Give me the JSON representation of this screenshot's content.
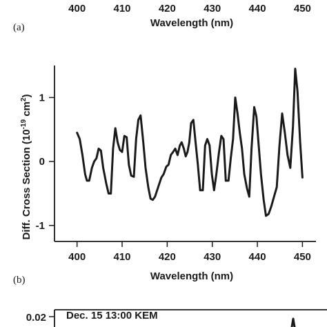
{
  "top_panel": {
    "x_tick_labels": [
      "400",
      "410",
      "420",
      "430",
      "440",
      "450"
    ],
    "xlabel": "Wavelength (nm)",
    "panel_label": "(a)"
  },
  "chart_data": {
    "type": "line",
    "panel_label": "(b)",
    "title": "",
    "xlabel": "Wavelength (nm)",
    "ylabel_parts": [
      "Diff. Cross Section (10",
      "-19",
      " cm",
      "2",
      ")"
    ],
    "xlim": [
      395,
      453
    ],
    "ylim": [
      -1.25,
      1.5
    ],
    "x_ticks": [
      400,
      410,
      420,
      430,
      440,
      450
    ],
    "y_ticks": [
      -1,
      0,
      1
    ],
    "x_tick_labels": [
      "400",
      "410",
      "420",
      "430",
      "440",
      "450"
    ],
    "y_tick_labels": [
      "-1",
      "0",
      "1"
    ],
    "grid": false,
    "series": [
      {
        "x": [
          400.0,
          400.6,
          401.2,
          401.8,
          402.2,
          402.7,
          403.3,
          403.8,
          404.3,
          404.8,
          405.3,
          405.8,
          406.5,
          407.0,
          407.5,
          408.0,
          408.5,
          409.0,
          409.5,
          410.0,
          410.5,
          411.0,
          411.5,
          412.0,
          412.6,
          413.1,
          413.6,
          414.1,
          414.7,
          415.2,
          415.8,
          416.3,
          416.8,
          417.3,
          418.0,
          418.7,
          419.2,
          419.8,
          420.3,
          420.8,
          421.3,
          421.8,
          422.3,
          422.8,
          423.2,
          423.7,
          424.1,
          424.5,
          424.9,
          425.3,
          425.8,
          426.3,
          426.8,
          427.3,
          427.9,
          428.4,
          428.9,
          429.4,
          429.9,
          430.4,
          430.9,
          431.5,
          432.0,
          432.5,
          433.0,
          433.6,
          434.1,
          434.6,
          435.1,
          435.6,
          436.1,
          436.6,
          437.1,
          437.7,
          438.2,
          438.7,
          439.3,
          439.8,
          440.3,
          440.8,
          441.4,
          441.9,
          442.5,
          443.1,
          443.7,
          444.3,
          444.9,
          445.5,
          446.1,
          446.7,
          447.3,
          447.9,
          448.4,
          448.9,
          449.5,
          450.0
        ],
        "values": [
          0.45,
          0.35,
          0.1,
          -0.2,
          -0.3,
          -0.3,
          -0.1,
          0.0,
          0.05,
          0.2,
          0.17,
          -0.1,
          -0.35,
          -0.5,
          -0.5,
          0.2,
          0.52,
          0.3,
          0.18,
          0.15,
          0.4,
          0.38,
          -0.05,
          -0.22,
          -0.24,
          0.35,
          0.65,
          0.72,
          0.3,
          -0.1,
          -0.4,
          -0.58,
          -0.6,
          -0.55,
          -0.4,
          -0.25,
          -0.2,
          -0.08,
          -0.05,
          0.1,
          0.15,
          0.2,
          0.1,
          0.25,
          0.3,
          0.2,
          0.08,
          0.15,
          0.3,
          0.6,
          0.65,
          0.3,
          -0.05,
          -0.45,
          -0.45,
          0.25,
          0.35,
          0.25,
          -0.2,
          -0.45,
          -0.2,
          0.15,
          0.4,
          0.35,
          -0.3,
          -0.3,
          0.05,
          0.35,
          1.0,
          0.75,
          0.45,
          0.2,
          -0.2,
          -0.42,
          -0.55,
          0.2,
          0.85,
          0.7,
          0.25,
          -0.2,
          -0.6,
          -0.85,
          -0.82,
          -0.7,
          -0.55,
          -0.4,
          0.25,
          0.75,
          0.45,
          0.1,
          -0.1,
          0.55,
          1.45,
          1.1,
          0.3,
          -0.25
        ]
      }
    ]
  },
  "bottom_panel": {
    "y_tick_label": "0.02",
    "annotation": "Dec. 15 13:00 KEM"
  }
}
